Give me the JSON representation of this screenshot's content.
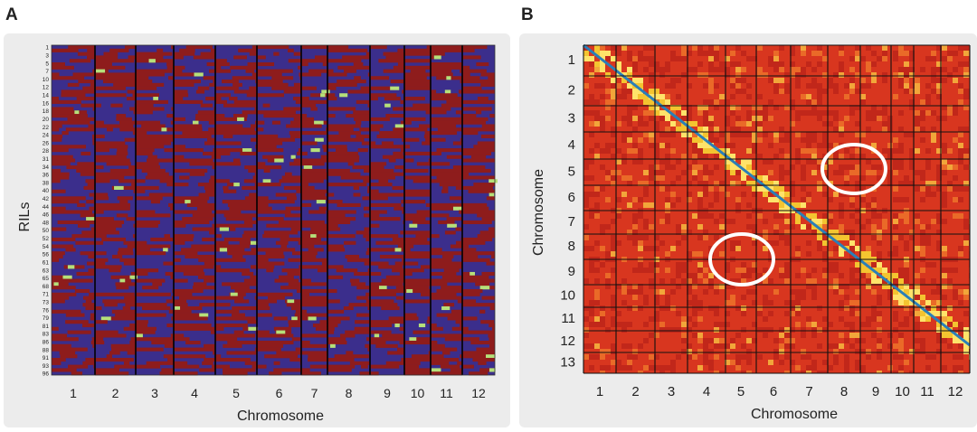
{
  "panel_a": {
    "label": "A",
    "y_axis_label": "RILs",
    "x_axis_label": "Chromosome",
    "row_labels": [
      "1",
      "3",
      "5",
      "7",
      "10",
      "12",
      "14",
      "16",
      "18",
      "20",
      "22",
      "24",
      "26",
      "28",
      "31",
      "34",
      "36",
      "38",
      "40",
      "42",
      "44",
      "46",
      "48",
      "50",
      "52",
      "54",
      "56",
      "61",
      "63",
      "65",
      "68",
      "71",
      "73",
      "76",
      "79",
      "81",
      "83",
      "86",
      "88",
      "91",
      "93",
      "96"
    ],
    "column_labels": [
      "1",
      "2",
      "3",
      "4",
      "5",
      "6",
      "7",
      "8",
      "9",
      "10",
      "11",
      "12"
    ]
  },
  "panel_b": {
    "label": "B",
    "y_axis_label": "Chromosome",
    "x_axis_label": "Chromosome",
    "row_labels": [
      "1",
      "2",
      "3",
      "4",
      "5",
      "6",
      "7",
      "8",
      "9",
      "10",
      "11",
      "12",
      "13"
    ],
    "column_labels": [
      "1",
      "2",
      "3",
      "4",
      "5",
      "6",
      "7",
      "8",
      "9",
      "10",
      "11",
      "12"
    ]
  }
}
